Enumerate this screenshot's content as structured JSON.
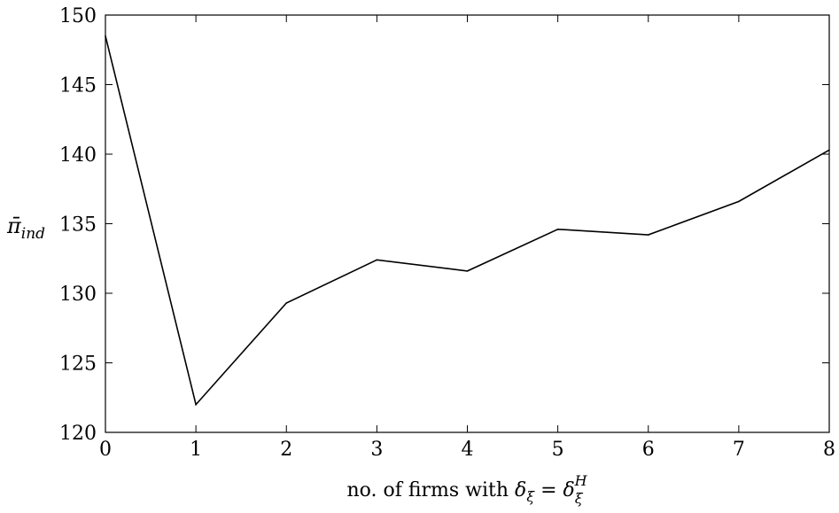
{
  "chart_data": {
    "type": "line",
    "title": "",
    "xlabel": "no. of firms with δ_ξ = δ_ξ^H",
    "xlabel_parts": {
      "prefix": "no. of firms with ",
      "var": "δ",
      "sub": "ξ",
      "eq": " = ",
      "var2": "δ",
      "sub2": "ξ",
      "sup2": "H"
    },
    "ylabel": "π̄_ind",
    "ylabel_parts": {
      "var": "π̄",
      "sub": "ind"
    },
    "xlim": [
      0,
      8
    ],
    "ylim": [
      120,
      150
    ],
    "xticks": [
      0,
      1,
      2,
      3,
      4,
      5,
      6,
      7,
      8
    ],
    "yticks": [
      120,
      125,
      130,
      135,
      140,
      145,
      150
    ],
    "grid": false,
    "legend": "none",
    "series": [
      {
        "color": "#000000",
        "x": [
          0,
          1,
          2,
          3,
          4,
          5,
          6,
          7,
          8
        ],
        "y": [
          148.5,
          122.0,
          129.3,
          132.4,
          131.6,
          134.6,
          134.2,
          136.6,
          140.3
        ]
      }
    ]
  }
}
